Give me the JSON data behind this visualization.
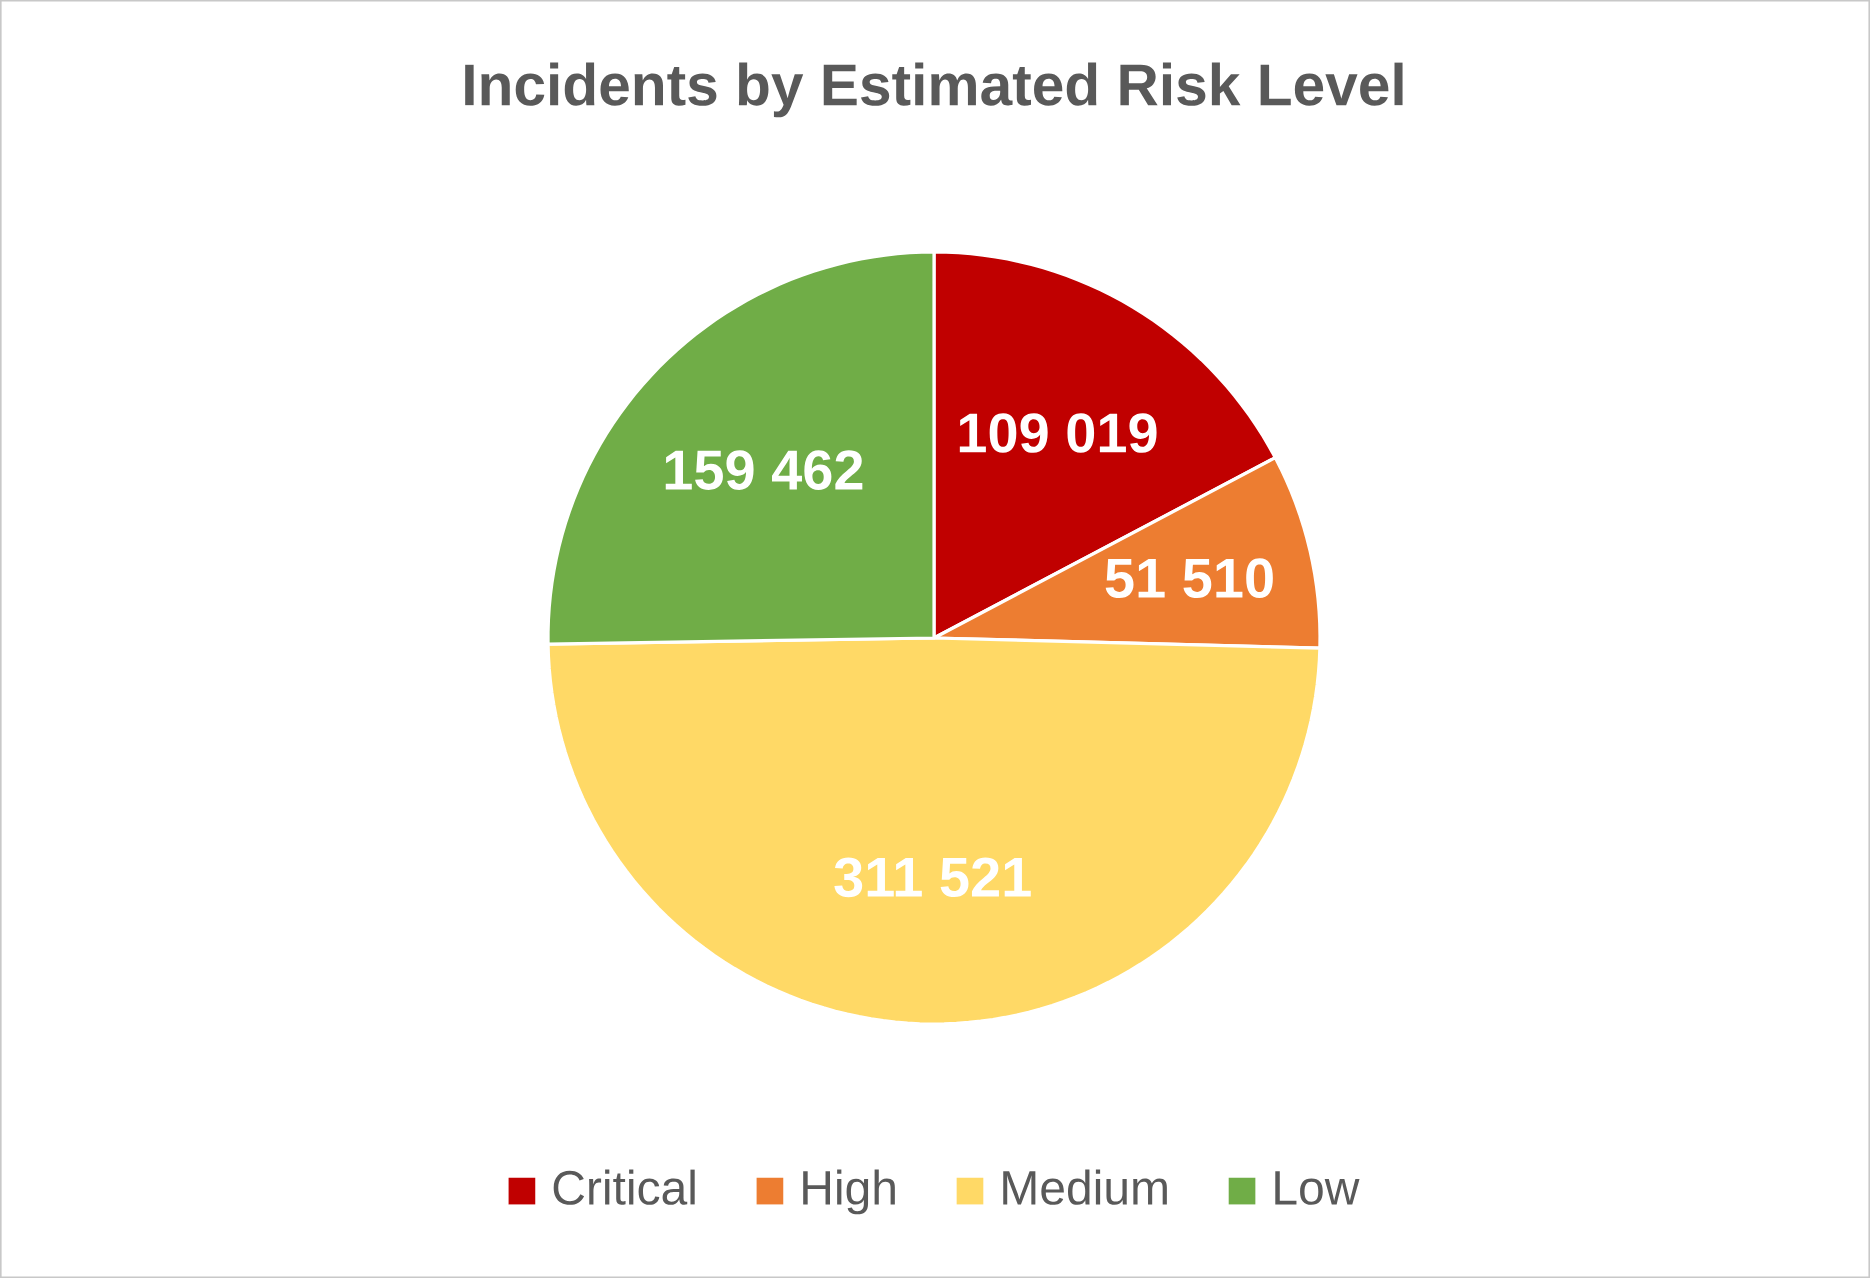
{
  "chart_data": {
    "type": "pie",
    "title": "Incidents by Estimated Risk Level",
    "categories": [
      "Critical",
      "High",
      "Medium",
      "Low"
    ],
    "values": [
      109019,
      51510,
      311521,
      159462
    ],
    "colors": [
      "#c00000",
      "#ed7d31",
      "#ffd966",
      "#70ad47"
    ],
    "value_labels": [
      "109 019",
      "51 510",
      "311 521",
      "159 462"
    ],
    "legend": "bottom"
  }
}
